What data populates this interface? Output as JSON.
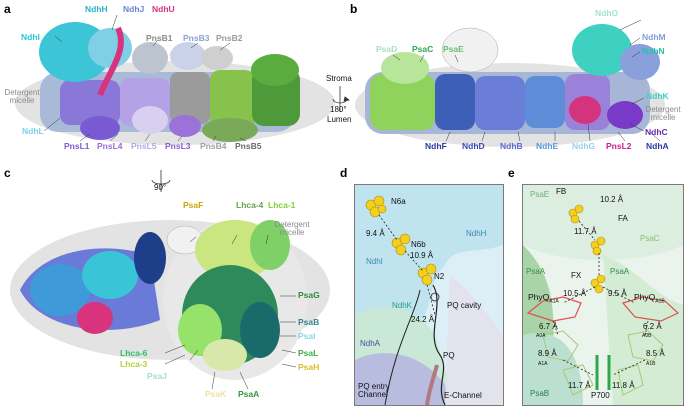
{
  "colors": {
    "cyan": "#39c5d6",
    "teal": "#29b5a8",
    "light_blue": "#7fcde8",
    "purple": "#7c5bd6",
    "magenta": "#d8347e",
    "gray": "#9a9a9a",
    "green": "#66bb3a",
    "yellow": "#d8c02a",
    "dark_purple": "#6a2aa8",
    "navy": "#2a3aa0"
  },
  "panel_a": {
    "letter": "a",
    "labels": {
      "ndhh": "NdhH",
      "ndhj": "NdhJ",
      "ndhu": "NdhU",
      "ndhi": "NdhI",
      "pnsb1": "PnsB1",
      "pnsb3": "PnsB3",
      "pnsb2": "PnsB2",
      "detergent_micelle": "Detergent micelle",
      "ndhl": "NdhL",
      "pnsl1": "PnsL1",
      "pnsl4": "PnsL4",
      "pnsl5": "PnsL5",
      "pnsl3": "PnsL3",
      "pnsb4": "PnsB4",
      "pnsb5": "PnsB5",
      "stroma": "Stroma",
      "rotation": "180°",
      "lumen": "Lumen"
    }
  },
  "panel_b": {
    "letter": "b",
    "labels": {
      "psad": "PsaD",
      "psac": "PsaC",
      "psae": "PsaE",
      "ndho": "NdhO",
      "ndhm": "NdhM",
      "ndhn": "NdhN",
      "ndhk": "NdhK",
      "detergent_micelle": "Detergent micelle",
      "ndhc": "NdhC",
      "ndhf": "NdhF",
      "ndhd": "NdhD",
      "ndhb": "NdhB",
      "ndhe": "NdhE",
      "ndhg": "NdhG",
      "pnsl2": "PnsL2",
      "ndha": "NdhA"
    }
  },
  "panel_c": {
    "letter": "c",
    "labels": {
      "rotation": "90°",
      "psaf": "PsaF",
      "lhca4": "Lhca-4",
      "lhca1": "Lhca-1",
      "detergent_micelle": "Detergent micelle",
      "psag": "PsaG",
      "psab": "PsaB",
      "psai": "PsaI",
      "psal": "PsaL",
      "psah": "PsaH",
      "lhca6": "Lhca-6",
      "lhca3": "Lhca-3",
      "psaj": "PsaJ",
      "psak": "PsaK",
      "psaa": "PsaA"
    }
  },
  "panel_d": {
    "letter": "d",
    "labels": {
      "n6a": "N6a",
      "n6b": "N6b",
      "n2": "N2",
      "ndhh": "NdhH",
      "ndhi": "NdhI",
      "ndhk": "NdhK",
      "ndha": "NdhA",
      "pq_cavity": "PQ cavity",
      "pq": "PQ",
      "pq_entry_channel": "PQ entry Channel",
      "e_channel": "E-Channel",
      "d1": "9.4 Å",
      "d2": "10.9 Å",
      "d3": "24.2 Å"
    }
  },
  "panel_e": {
    "letter": "e",
    "labels": {
      "psae": "PsaE",
      "psac": "PsaC",
      "psaa": "PsaA",
      "psab": "PsaB",
      "fb": "FB",
      "fa": "FA",
      "fx": "FX",
      "phyq_a": "PhyQ",
      "phyq_a_sub": "A1A",
      "phyq_b": "PhyQ",
      "phyq_b_sub": "A1B",
      "a0a": "A0A",
      "a1a": "A1A",
      "a0b": "A0B",
      "a1b": "A1B",
      "p700": "P700",
      "d_fb_fa": "10.2 Å",
      "d_fa_fx": "11.7 Å",
      "d_fx_left": "10.5 Å",
      "d_fx_right": "9.5 Å",
      "d_67": "6.7 Å",
      "d_62": "6.2 Å",
      "d_89": "8.9 Å",
      "d_85": "8.5 Å",
      "d_117": "11.7 Å",
      "d_118": "11.8 Å"
    }
  }
}
